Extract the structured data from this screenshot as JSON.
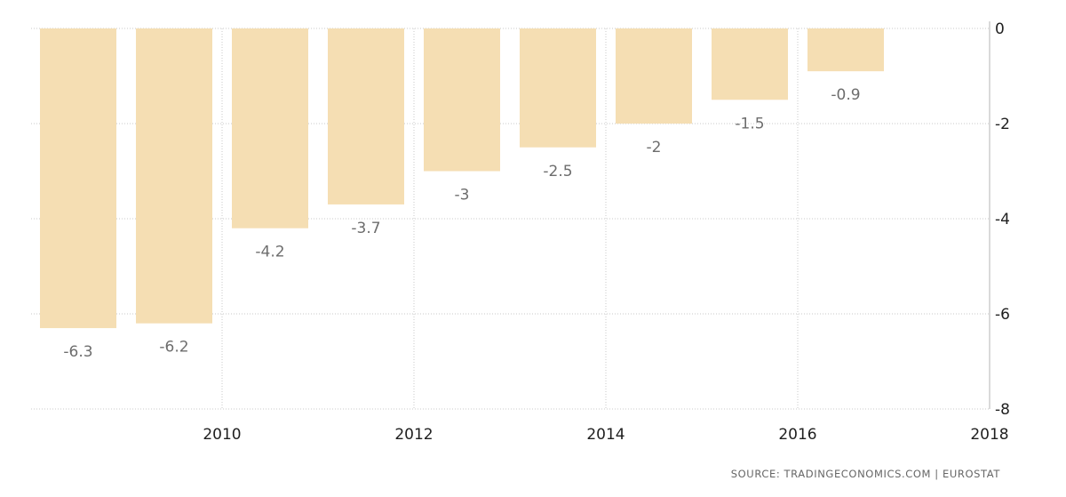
{
  "chart_data": {
    "type": "bar",
    "categories": [
      "2009",
      "2010",
      "2011",
      "2012",
      "2013",
      "2014",
      "2015",
      "2016",
      "2017"
    ],
    "values": [
      -6.3,
      -6.2,
      -4.2,
      -3.7,
      -3,
      -2.5,
      -2,
      -1.5,
      -0.9
    ],
    "data_labels": [
      "-6.3",
      "-6.2",
      "-4.2",
      "-3.7",
      "-3",
      "-2.5",
      "-2",
      "-1.5",
      "-0.9"
    ],
    "x_ticks": [
      "2010",
      "2012",
      "2014",
      "2016",
      "2018"
    ],
    "x_tick_values": [
      2010,
      2012,
      2014,
      2016,
      2018
    ],
    "y_ticks": [
      "0",
      "-2",
      "-4",
      "-6",
      "-8"
    ],
    "y_tick_values": [
      0,
      -2,
      -4,
      -6,
      -8
    ],
    "ylim": [
      -8,
      0
    ],
    "xlim": [
      2008.5,
      2018
    ],
    "y_axis_position": "right",
    "grid": true,
    "legend": "none",
    "bar_color": "#f5deb3",
    "title": "",
    "xlabel": "",
    "ylabel": ""
  },
  "source_text": "SOURCE: TRADINGECONOMICS.COM | EUROSTAT"
}
